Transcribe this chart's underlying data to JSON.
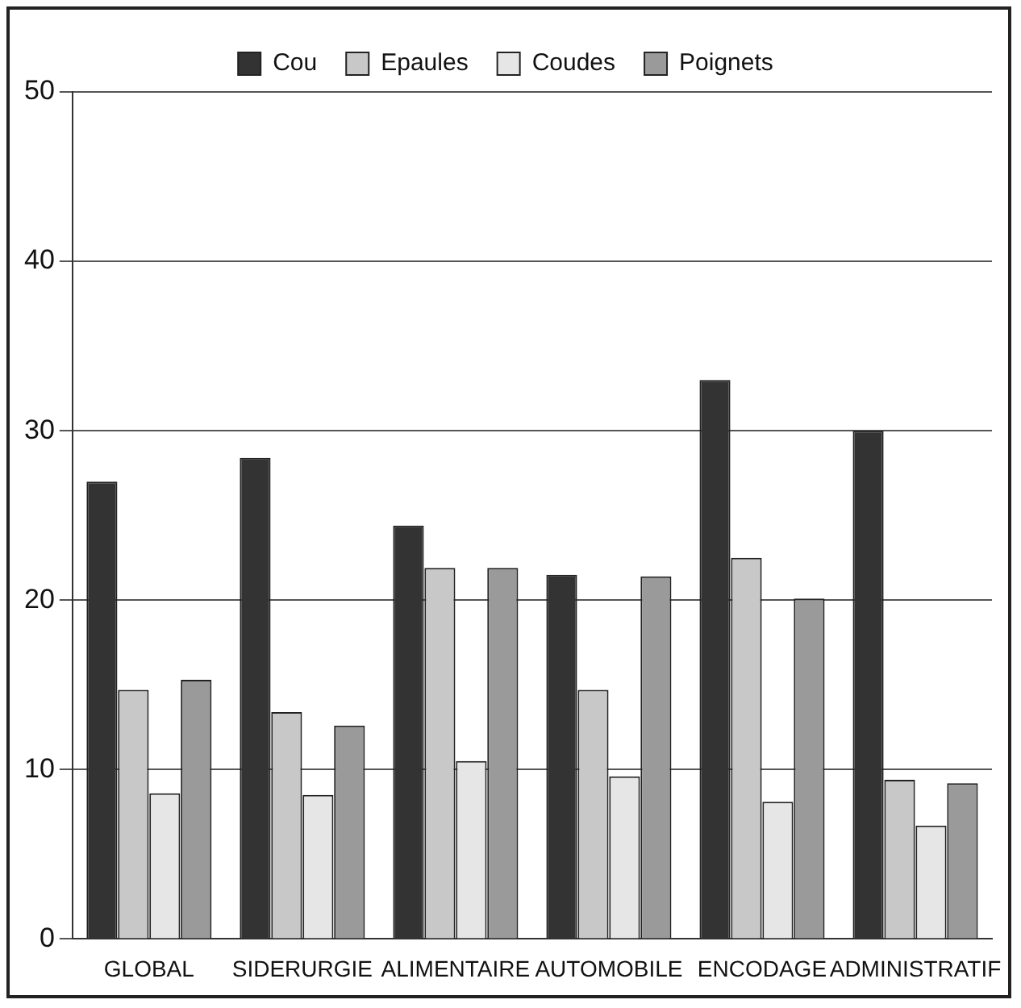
{
  "chart_data": {
    "type": "bar",
    "categories": [
      "GLOBAL",
      "SIDERURGIE",
      "ALIMENTAIRE",
      "AUTOMOBILE",
      "ENCODAGE",
      "ADMINISTRATIF"
    ],
    "series": [
      {
        "name": "Cou",
        "color": "#333333",
        "values": [
          27.0,
          28.4,
          24.4,
          21.5,
          33.0,
          30.0
        ]
      },
      {
        "name": "Epaules",
        "color": "#c8c8c8",
        "values": [
          14.7,
          13.4,
          21.9,
          14.7,
          22.5,
          9.4
        ]
      },
      {
        "name": "Coudes",
        "color": "#e6e6e6",
        "values": [
          8.6,
          8.5,
          10.5,
          9.6,
          8.1,
          6.7
        ]
      },
      {
        "name": "Poignets",
        "color": "#9a9a9a",
        "values": [
          15.3,
          12.6,
          21.9,
          21.4,
          20.1,
          9.2
        ]
      }
    ],
    "ylim": [
      0,
      50
    ],
    "yticks": [
      0,
      10,
      20,
      30,
      40,
      50
    ],
    "grid": "y",
    "legend": "top"
  }
}
